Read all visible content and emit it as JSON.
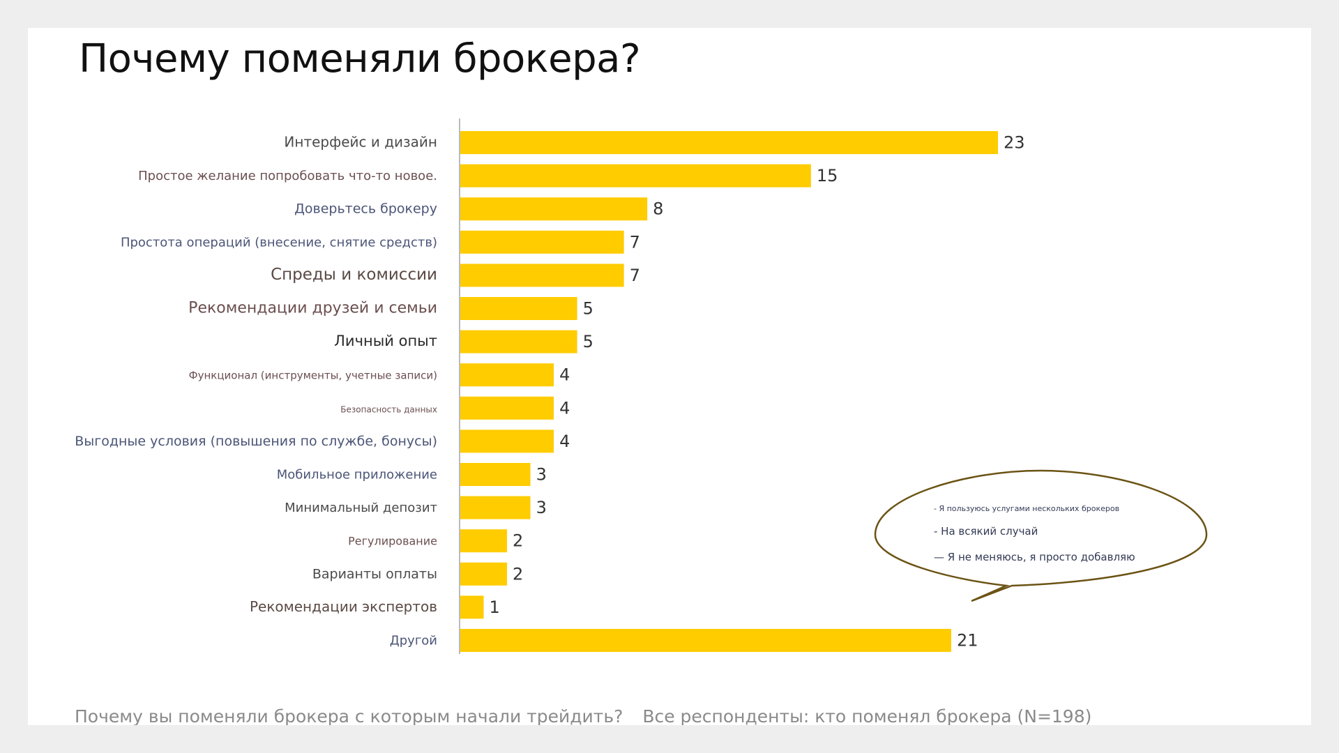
{
  "title": "Почему поменяли брокера?",
  "chart_data": {
    "type": "bar",
    "orientation": "horizontal",
    "title": "Почему поменяли брокера?",
    "categories": [
      "Интерфейс и дизайн",
      "Простое желание попробовать что-то новое.",
      "Доверьтесь брокеру",
      "Простота операций (внесение, снятие средств)",
      "Спреды и комиссии",
      "Рекомендации друзей и семьи",
      "Личный опыт",
      "Функционал (инструменты, учетные записи)",
      "Безопасность данных",
      "Выгодные условия (повышения по службе, бонусы)",
      "Мобильное приложение",
      "Минимальный депозит",
      "Регулирование",
      "Варианты оплаты",
      "Рекомендации экспертов",
      "Другой"
    ],
    "values": [
      23,
      15,
      8,
      7,
      7,
      5,
      5,
      4,
      4,
      4,
      3,
      3,
      2,
      2,
      1,
      21
    ],
    "xlim": [
      0,
      23
    ],
    "bar_color": "#ffcc00",
    "label_colors": [
      "#4a4a4a",
      "#6b4f4f",
      "#4b5577",
      "#4b5577",
      "#5a4a44",
      "#6b4f4f",
      "#2a2a2a",
      "#6b4f4f",
      "#6b4f4f",
      "#4b5577",
      "#4b5577",
      "#4a4a4a",
      "#6b4f4f",
      "#4a4a4a",
      "#5a4a44",
      "#4b5577"
    ],
    "label_sizes": [
      20,
      18,
      19,
      18,
      23,
      22,
      21,
      15,
      12,
      19,
      18,
      18,
      16,
      19,
      20,
      18
    ],
    "annotation": {
      "lines": [
        "- Я пользуюсь услугами нескольких брокеров",
        "- На всякий случай",
        "— Я не меняюсь, я просто добавляю"
      ],
      "points_to": "Другой"
    }
  },
  "footnote": {
    "question": "Почему вы поменяли брокера с которым начали трейдить?",
    "base": "Все респонденты: кто поменял брокера (N=198)"
  }
}
